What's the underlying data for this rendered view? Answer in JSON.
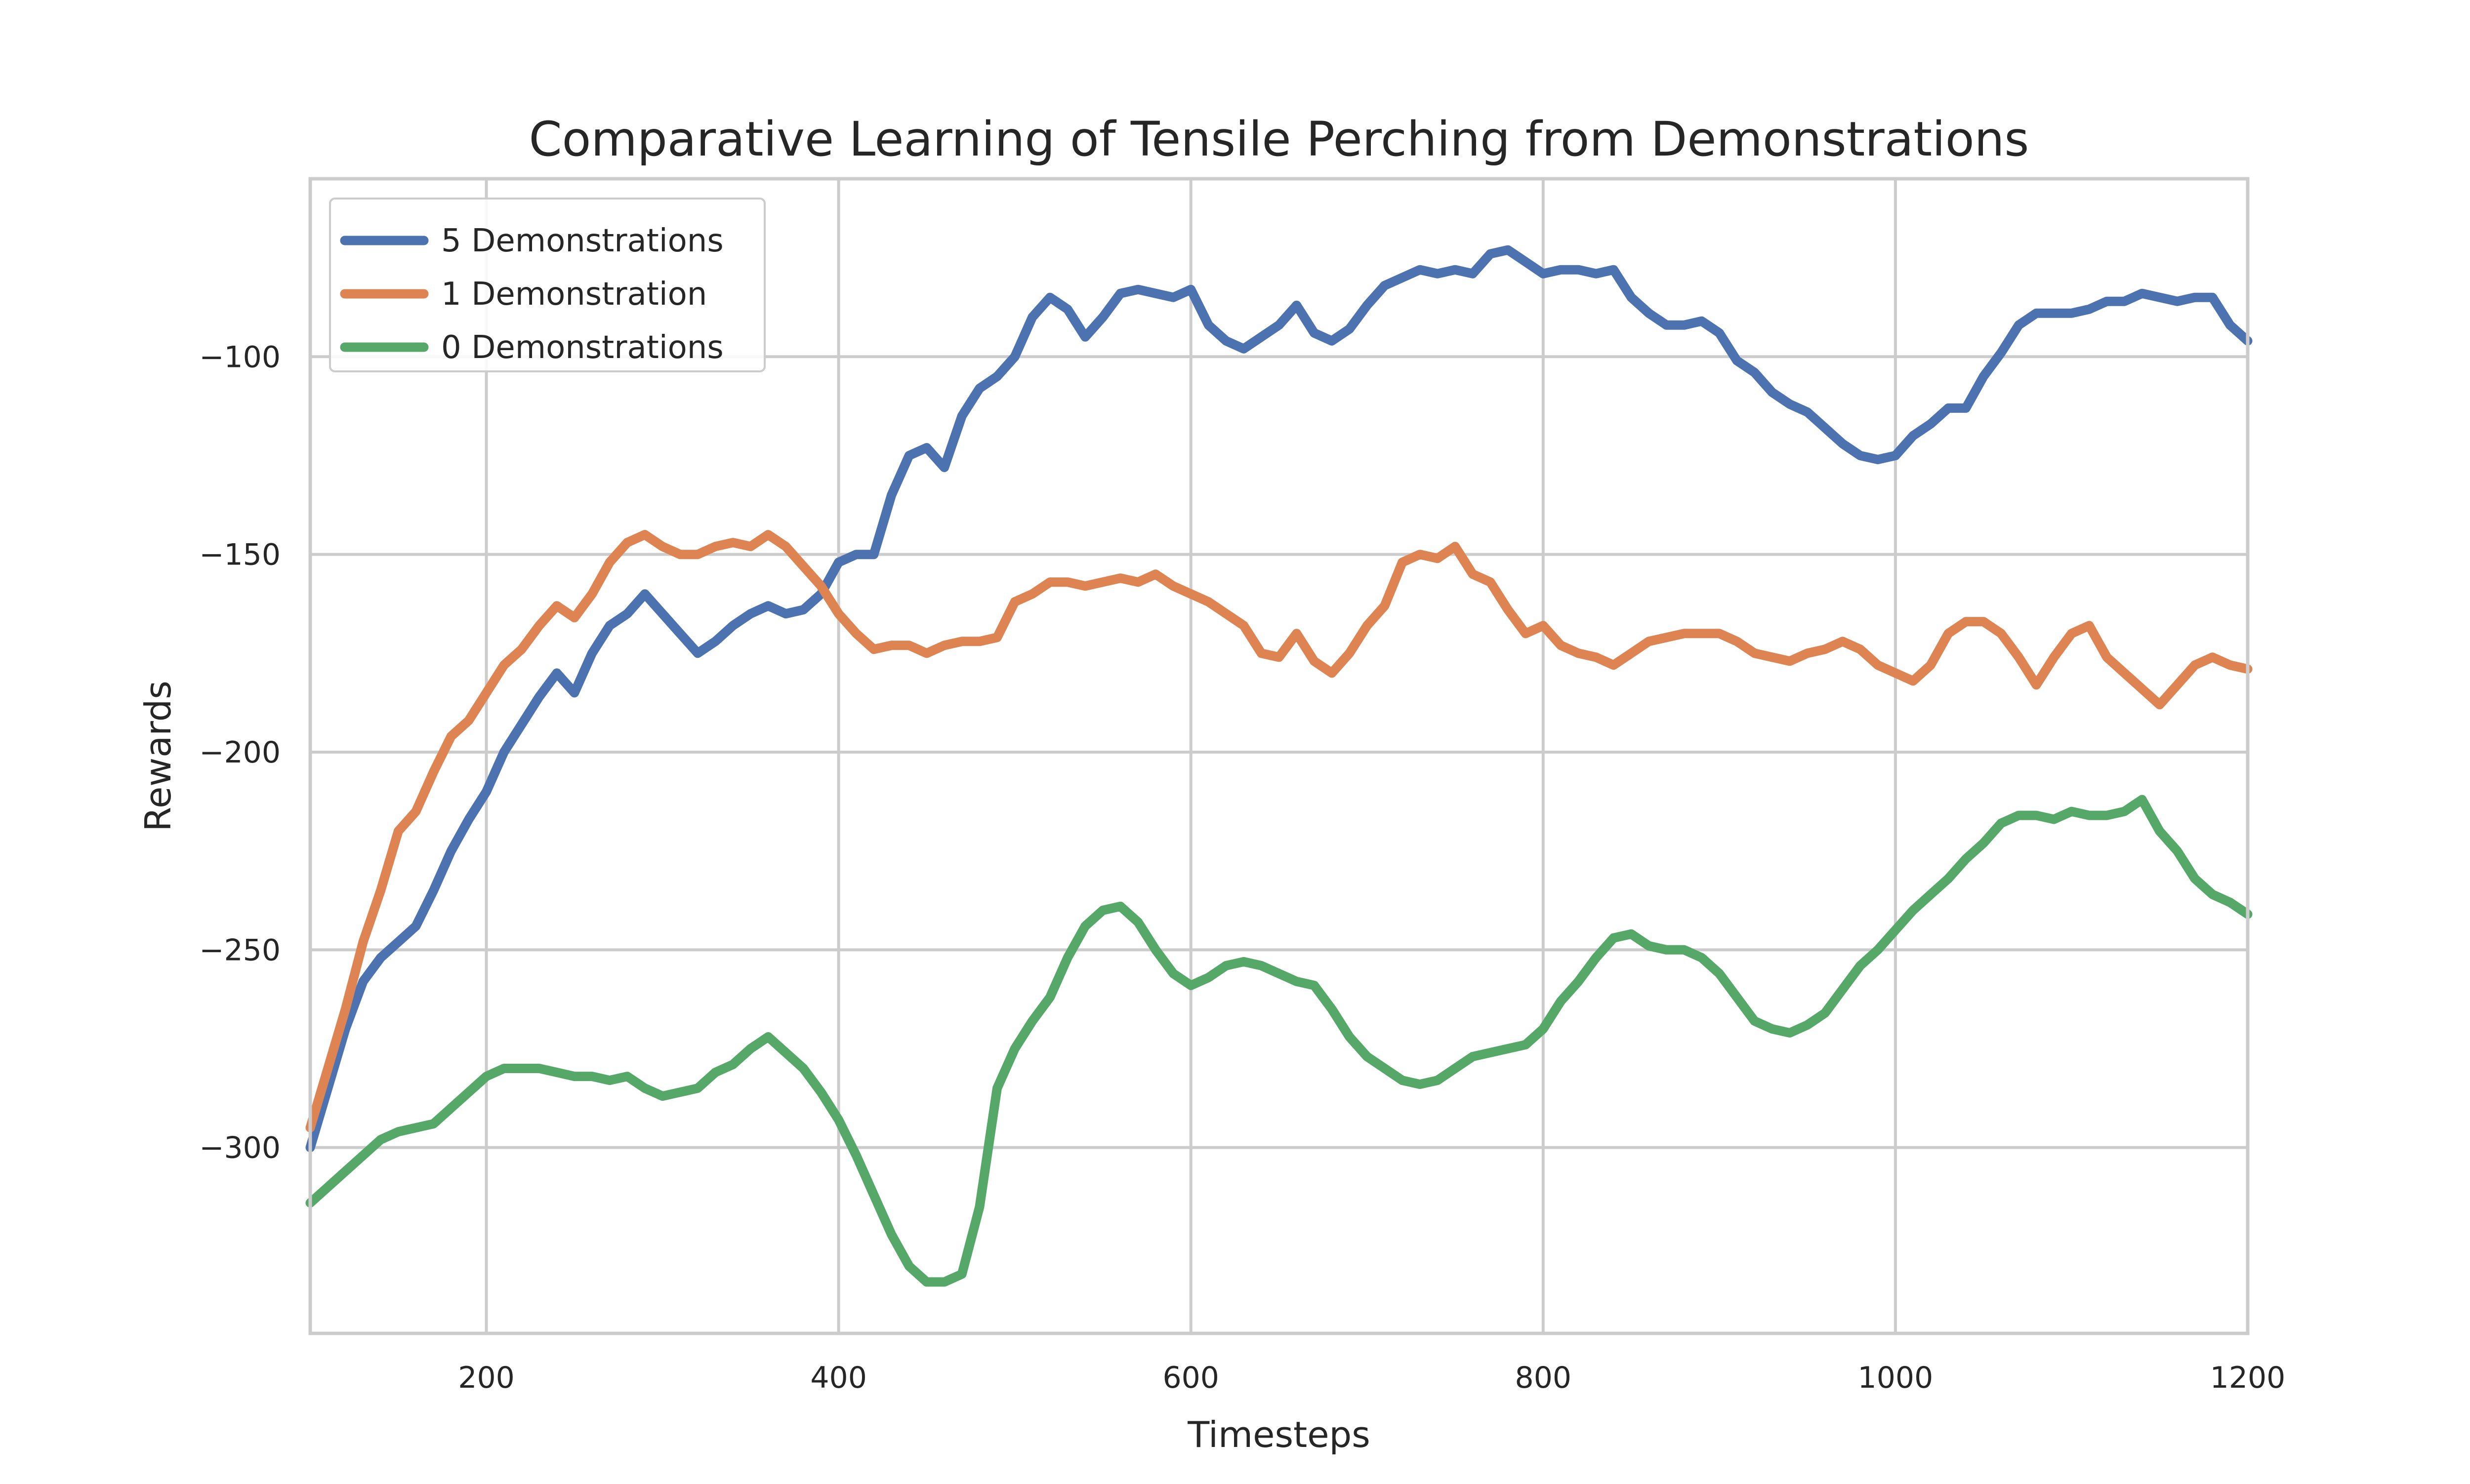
{
  "chart_data": {
    "type": "line",
    "title": "Comparative Learning of Tensile Perching from Demonstrations",
    "xlabel": "Timesteps",
    "ylabel": "Rewards",
    "xlim": [
      100,
      1200
    ],
    "ylim": [
      -347,
      -55
    ],
    "xticks": [
      200,
      400,
      600,
      800,
      1000,
      1200
    ],
    "xtick_labels": [
      "200",
      "400",
      "600",
      "800",
      "1000",
      "1200"
    ],
    "yticks": [
      -300,
      -250,
      -200,
      -150,
      -100
    ],
    "ytick_labels": [
      "−300",
      "−250",
      "−200",
      "−150",
      "−100"
    ],
    "grid": true,
    "legend_position": "top-left",
    "series": [
      {
        "name": "5 Demonstrations",
        "color": "#4c72b0",
        "x": [
          100,
          110,
          120,
          130,
          140,
          150,
          160,
          170,
          180,
          190,
          200,
          210,
          220,
          230,
          240,
          250,
          260,
          270,
          280,
          290,
          300,
          310,
          320,
          330,
          340,
          350,
          360,
          370,
          380,
          390,
          400,
          410,
          420,
          430,
          440,
          450,
          460,
          470,
          480,
          490,
          500,
          510,
          520,
          530,
          540,
          550,
          560,
          570,
          580,
          590,
          600,
          610,
          620,
          630,
          640,
          650,
          660,
          670,
          680,
          690,
          700,
          710,
          720,
          730,
          740,
          750,
          760,
          770,
          780,
          790,
          800,
          810,
          820,
          830,
          840,
          850,
          860,
          870,
          880,
          890,
          900,
          910,
          920,
          930,
          940,
          950,
          960,
          970,
          980,
          990,
          1000,
          1010,
          1020,
          1030,
          1040,
          1050,
          1060,
          1070,
          1080,
          1090,
          1100,
          1110,
          1120,
          1130,
          1140,
          1150,
          1160,
          1170,
          1180,
          1190,
          1200
        ],
        "y": [
          -300,
          -285,
          -270,
          -258,
          -252,
          -248,
          -244,
          -235,
          -225,
          -217,
          -210,
          -200,
          -193,
          -186,
          -180,
          -185,
          -175,
          -168,
          -165,
          -160,
          -165,
          -170,
          -175,
          -172,
          -168,
          -165,
          -163,
          -165,
          -164,
          -160,
          -152,
          -150,
          -150,
          -135,
          -125,
          -123,
          -128,
          -115,
          -108,
          -105,
          -100,
          -90,
          -85,
          -88,
          -95,
          -90,
          -84,
          -83,
          -84,
          -85,
          -83,
          -92,
          -96,
          -98,
          -95,
          -92,
          -87,
          -94,
          -96,
          -93,
          -87,
          -82,
          -80,
          -78,
          -79,
          -78,
          -79,
          -74,
          -73,
          -76,
          -79,
          -78,
          -78,
          -79,
          -78,
          -85,
          -89,
          -92,
          -92,
          -91,
          -94,
          -101,
          -104,
          -109,
          -112,
          -114,
          -118,
          -122,
          -125,
          -126,
          -125,
          -120,
          -117,
          -113,
          -113,
          -105,
          -99,
          -92,
          -89,
          -89,
          -89,
          -88,
          -86,
          -86,
          -84,
          -85,
          -86,
          -85,
          -85,
          -92,
          -96
        ]
      },
      {
        "name": "1 Demonstration",
        "color": "#dd8452",
        "x": [
          100,
          110,
          120,
          130,
          140,
          150,
          160,
          170,
          180,
          190,
          200,
          210,
          220,
          230,
          240,
          250,
          260,
          270,
          280,
          290,
          300,
          310,
          320,
          330,
          340,
          350,
          360,
          370,
          380,
          390,
          400,
          410,
          420,
          430,
          440,
          450,
          460,
          470,
          480,
          490,
          500,
          510,
          520,
          530,
          540,
          550,
          560,
          570,
          580,
          590,
          600,
          610,
          620,
          630,
          640,
          650,
          660,
          670,
          680,
          690,
          700,
          710,
          720,
          730,
          740,
          750,
          760,
          770,
          780,
          790,
          800,
          810,
          820,
          830,
          840,
          850,
          860,
          870,
          880,
          890,
          900,
          910,
          920,
          930,
          940,
          950,
          960,
          970,
          980,
          990,
          1000,
          1010,
          1020,
          1030,
          1040,
          1050,
          1060,
          1070,
          1080,
          1090,
          1100,
          1110,
          1120,
          1130,
          1140,
          1150,
          1160,
          1170,
          1180,
          1190,
          1200
        ],
        "y": [
          -295,
          -280,
          -265,
          -248,
          -235,
          -220,
          -215,
          -205,
          -196,
          -192,
          -185,
          -178,
          -174,
          -168,
          -163,
          -166,
          -160,
          -152,
          -147,
          -145,
          -148,
          -150,
          -150,
          -148,
          -147,
          -148,
          -145,
          -148,
          -153,
          -158,
          -165,
          -170,
          -174,
          -173,
          -173,
          -175,
          -173,
          -172,
          -172,
          -171,
          -162,
          -160,
          -157,
          -157,
          -158,
          -157,
          -156,
          -157,
          -155,
          -158,
          -160,
          -162,
          -165,
          -168,
          -175,
          -176,
          -170,
          -177,
          -180,
          -175,
          -168,
          -163,
          -152,
          -150,
          -151,
          -148,
          -155,
          -157,
          -164,
          -170,
          -168,
          -173,
          -175,
          -176,
          -178,
          -175,
          -172,
          -171,
          -170,
          -170,
          -170,
          -172,
          -175,
          -176,
          -177,
          -175,
          -174,
          -172,
          -174,
          -178,
          -180,
          -182,
          -178,
          -170,
          -167,
          -167,
          -170,
          -176,
          -183,
          -176,
          -170,
          -168,
          -176,
          -180,
          -184,
          -188,
          -183,
          -178,
          -176,
          -178,
          -179
        ]
      },
      {
        "name": "0 Demonstrations",
        "color": "#55a868",
        "x": [
          100,
          110,
          120,
          130,
          140,
          150,
          160,
          170,
          180,
          190,
          200,
          210,
          220,
          230,
          240,
          250,
          260,
          270,
          280,
          290,
          300,
          310,
          320,
          330,
          340,
          350,
          360,
          370,
          380,
          390,
          400,
          410,
          420,
          430,
          440,
          450,
          460,
          470,
          480,
          490,
          500,
          510,
          520,
          530,
          540,
          550,
          560,
          570,
          580,
          590,
          600,
          610,
          620,
          630,
          640,
          650,
          660,
          670,
          680,
          690,
          700,
          710,
          720,
          730,
          740,
          750,
          760,
          770,
          780,
          790,
          800,
          810,
          820,
          830,
          840,
          850,
          860,
          870,
          880,
          890,
          900,
          910,
          920,
          930,
          940,
          950,
          960,
          970,
          980,
          990,
          1000,
          1010,
          1020,
          1030,
          1040,
          1050,
          1060,
          1070,
          1080,
          1090,
          1100,
          1110,
          1120,
          1130,
          1140,
          1150,
          1160,
          1170,
          1180,
          1190,
          1200
        ],
        "y": [
          -314,
          -310,
          -306,
          -302,
          -298,
          -296,
          -295,
          -294,
          -290,
          -286,
          -282,
          -280,
          -280,
          -280,
          -281,
          -282,
          -282,
          -283,
          -282,
          -285,
          -287,
          -286,
          -285,
          -281,
          -279,
          -275,
          -272,
          -276,
          -280,
          -286,
          -293,
          -302,
          -312,
          -322,
          -330,
          -334,
          -334,
          -332,
          -315,
          -285,
          -275,
          -268,
          -262,
          -252,
          -244,
          -240,
          -239,
          -243,
          -250,
          -256,
          -259,
          -257,
          -254,
          -253,
          -254,
          -256,
          -258,
          -259,
          -265,
          -272,
          -277,
          -280,
          -283,
          -284,
          -283,
          -280,
          -277,
          -276,
          -275,
          -274,
          -270,
          -263,
          -258,
          -252,
          -247,
          -246,
          -249,
          -250,
          -250,
          -252,
          -256,
          -262,
          -268,
          -270,
          -271,
          -269,
          -266,
          -260,
          -254,
          -250,
          -245,
          -240,
          -236,
          -232,
          -227,
          -223,
          -218,
          -216,
          -216,
          -217,
          -215,
          -216,
          -216,
          -215,
          -212,
          -220,
          -225,
          -232,
          -236,
          -238,
          -241
        ]
      }
    ]
  }
}
